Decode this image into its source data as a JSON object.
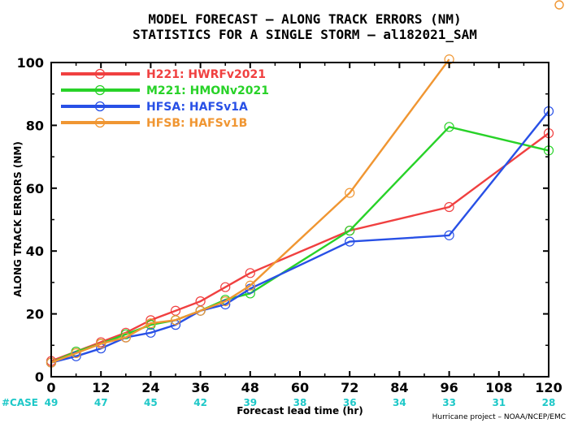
{
  "chart_data": {
    "type": "line",
    "title": "MODEL FORECAST – ALONG TRACK ERRORS (NM)",
    "subtitle": "STATISTICS FOR A SINGLE STORM – al182021_SAM",
    "xlabel": "Forecast lead time (hr)",
    "ylabel": "ALONG TRACK ERRORS (NM)",
    "xlim": [
      0,
      120
    ],
    "ylim": [
      0,
      100
    ],
    "x_ticks": [
      "0",
      "12",
      "24",
      "36",
      "48",
      "60",
      "72",
      "84",
      "96",
      "108",
      "120"
    ],
    "y_ticks": [
      "0",
      "20",
      "40",
      "60",
      "80",
      "100"
    ],
    "grid": false,
    "legend_position": "top-left",
    "case_label": "#CASE",
    "case_counts": [
      "49",
      "47",
      "45",
      "42",
      "39",
      "38",
      "36",
      "34",
      "33",
      "31",
      "28"
    ],
    "credit": "Hurricane project – NOAA/NCEP/EMC",
    "series": [
      {
        "name": "H221:  HWRFv2021",
        "color": "#f04040",
        "x": [
          0,
          6,
          12,
          18,
          24,
          30,
          36,
          42,
          48,
          72,
          96,
          120
        ],
        "y": [
          5,
          8,
          11,
          14,
          18,
          21,
          24,
          28.5,
          33,
          46.5,
          54,
          77.5
        ]
      },
      {
        "name": "M221:  HMONv2021",
        "color": "#28d228",
        "x": [
          0,
          6,
          12,
          18,
          24,
          30,
          36,
          42,
          48,
          72,
          96,
          120
        ],
        "y": [
          4.5,
          8,
          10.5,
          13.5,
          16.5,
          18,
          21,
          24.5,
          26.5,
          46.5,
          79.5,
          72
        ]
      },
      {
        "name": "HFSA:  HAFSv1A",
        "color": "#2850e6",
        "x": [
          0,
          6,
          12,
          18,
          24,
          30,
          36,
          42,
          48,
          72,
          96,
          120
        ],
        "y": [
          4.5,
          6.5,
          9,
          12.5,
          14,
          16.5,
          21,
          23,
          28,
          43,
          45,
          84.5
        ]
      },
      {
        "name": "HFSB:  HAFSv1B",
        "color": "#f09632",
        "x": [
          0,
          6,
          12,
          18,
          24,
          30,
          36,
          42,
          48,
          72,
          96
        ],
        "y": [
          4.5,
          7.5,
          10.5,
          12.5,
          17,
          18,
          21,
          24,
          29,
          58.5,
          101
        ]
      }
    ]
  }
}
